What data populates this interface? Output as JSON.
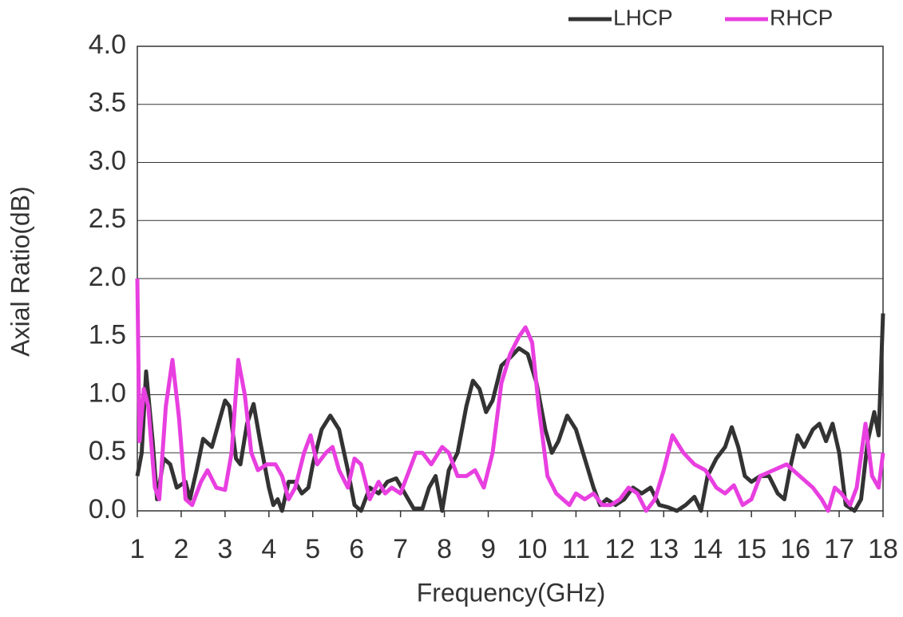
{
  "chart_data": {
    "type": "line",
    "xlabel": "Frequency(GHz)",
    "ylabel": "Axial Ratio(dB)",
    "xlim": [
      1,
      18
    ],
    "xticks": [
      1,
      2,
      3,
      4,
      5,
      6,
      7,
      8,
      9,
      10,
      11,
      12,
      13,
      14,
      15,
      16,
      17,
      18
    ],
    "ylim": [
      0,
      4
    ],
    "yticks": [
      {
        "value": 0,
        "label": "0.0"
      },
      {
        "value": 0.5,
        "label": "0.5"
      },
      {
        "value": 1,
        "label": "1.0"
      },
      {
        "value": 1.5,
        "label": "1.5"
      },
      {
        "value": 2,
        "label": "2.0"
      },
      {
        "value": 2.5,
        "label": "2.5"
      },
      {
        "value": 3,
        "label": "3.0"
      },
      {
        "value": 3.5,
        "label": "3.5"
      },
      {
        "value": 4,
        "label": "4.0"
      }
    ],
    "grid": true,
    "legend": "top-right",
    "series": [
      {
        "name": "LHCP",
        "color": "#333333",
        "x": [
          1.0,
          1.1,
          1.2,
          1.35,
          1.45,
          1.6,
          1.75,
          1.9,
          2.1,
          2.2,
          2.35,
          2.5,
          2.7,
          2.85,
          3.0,
          3.1,
          3.25,
          3.35,
          3.5,
          3.65,
          3.8,
          4.0,
          4.1,
          4.2,
          4.3,
          4.45,
          4.6,
          4.75,
          4.9,
          5.0,
          5.2,
          5.4,
          5.6,
          5.8,
          5.95,
          6.1,
          6.3,
          6.5,
          6.7,
          6.9,
          7.1,
          7.3,
          7.5,
          7.65,
          7.8,
          7.95,
          8.1,
          8.3,
          8.5,
          8.65,
          8.8,
          8.95,
          9.1,
          9.3,
          9.5,
          9.7,
          9.9,
          10.1,
          10.3,
          10.45,
          10.6,
          10.8,
          11.0,
          11.2,
          11.4,
          11.55,
          11.7,
          11.9,
          12.1,
          12.3,
          12.5,
          12.7,
          12.9,
          13.1,
          13.3,
          13.5,
          13.7,
          13.85,
          14.0,
          14.2,
          14.4,
          14.55,
          14.7,
          14.85,
          15.0,
          15.2,
          15.4,
          15.6,
          15.75,
          15.9,
          16.05,
          16.2,
          16.4,
          16.55,
          16.7,
          16.85,
          17.0,
          17.15,
          17.35,
          17.5,
          17.65,
          17.8,
          17.9,
          18.0
        ],
        "values": [
          0.3,
          0.5,
          1.2,
          0.6,
          0.1,
          0.45,
          0.4,
          0.2,
          0.25,
          0.1,
          0.35,
          0.62,
          0.55,
          0.75,
          0.95,
          0.9,
          0.45,
          0.4,
          0.75,
          0.92,
          0.6,
          0.2,
          0.05,
          0.1,
          0.0,
          0.25,
          0.25,
          0.15,
          0.2,
          0.4,
          0.7,
          0.82,
          0.7,
          0.35,
          0.05,
          0.0,
          0.2,
          0.15,
          0.25,
          0.28,
          0.15,
          0.02,
          0.02,
          0.2,
          0.3,
          0.0,
          0.35,
          0.5,
          0.9,
          1.12,
          1.05,
          0.85,
          0.95,
          1.25,
          1.32,
          1.4,
          1.35,
          1.1,
          0.7,
          0.5,
          0.6,
          0.82,
          0.7,
          0.45,
          0.2,
          0.05,
          0.1,
          0.05,
          0.1,
          0.2,
          0.15,
          0.2,
          0.05,
          0.03,
          0.0,
          0.05,
          0.12,
          0.0,
          0.3,
          0.45,
          0.55,
          0.72,
          0.55,
          0.3,
          0.25,
          0.3,
          0.3,
          0.15,
          0.1,
          0.4,
          0.65,
          0.55,
          0.7,
          0.75,
          0.6,
          0.75,
          0.5,
          0.05,
          0.0,
          0.1,
          0.6,
          0.85,
          0.65,
          1.7
        ]
      },
      {
        "name": "RHCP",
        "color": "#e83fe0",
        "x": [
          1.0,
          1.05,
          1.15,
          1.25,
          1.4,
          1.5,
          1.65,
          1.8,
          1.95,
          2.1,
          2.25,
          2.45,
          2.6,
          2.8,
          3.0,
          3.15,
          3.3,
          3.45,
          3.6,
          3.75,
          3.95,
          4.15,
          4.3,
          4.45,
          4.6,
          4.8,
          4.95,
          5.1,
          5.3,
          5.45,
          5.6,
          5.8,
          5.95,
          6.1,
          6.3,
          6.5,
          6.65,
          6.8,
          7.0,
          7.15,
          7.35,
          7.5,
          7.7,
          7.95,
          8.1,
          8.3,
          8.5,
          8.7,
          8.9,
          9.1,
          9.3,
          9.5,
          9.7,
          9.85,
          10.0,
          10.15,
          10.35,
          10.55,
          10.7,
          10.85,
          11.0,
          11.2,
          11.4,
          11.6,
          11.8,
          12.0,
          12.2,
          12.4,
          12.6,
          12.8,
          13.0,
          13.2,
          13.45,
          13.7,
          13.95,
          14.2,
          14.4,
          14.6,
          14.8,
          15.0,
          15.2,
          15.5,
          15.8,
          16.1,
          16.4,
          16.6,
          16.75,
          16.9,
          17.05,
          17.25,
          17.4,
          17.6,
          17.75,
          17.9,
          18.0
        ],
        "values": [
          2.0,
          0.6,
          1.05,
          0.9,
          0.2,
          0.1,
          0.9,
          1.3,
          0.8,
          0.1,
          0.05,
          0.25,
          0.35,
          0.2,
          0.18,
          0.5,
          1.3,
          1.0,
          0.5,
          0.35,
          0.4,
          0.4,
          0.3,
          0.1,
          0.2,
          0.5,
          0.65,
          0.4,
          0.5,
          0.55,
          0.35,
          0.2,
          0.45,
          0.4,
          0.1,
          0.25,
          0.15,
          0.2,
          0.15,
          0.3,
          0.5,
          0.5,
          0.4,
          0.55,
          0.5,
          0.3,
          0.3,
          0.35,
          0.2,
          0.5,
          1.1,
          1.35,
          1.5,
          1.58,
          1.45,
          0.9,
          0.3,
          0.15,
          0.1,
          0.05,
          0.15,
          0.1,
          0.15,
          0.05,
          0.05,
          0.1,
          0.2,
          0.15,
          0.0,
          0.1,
          0.35,
          0.65,
          0.5,
          0.4,
          0.35,
          0.2,
          0.15,
          0.22,
          0.05,
          0.1,
          0.3,
          0.35,
          0.4,
          0.3,
          0.2,
          0.1,
          0.0,
          0.2,
          0.15,
          0.05,
          0.2,
          0.75,
          0.3,
          0.2,
          0.5
        ]
      }
    ]
  }
}
